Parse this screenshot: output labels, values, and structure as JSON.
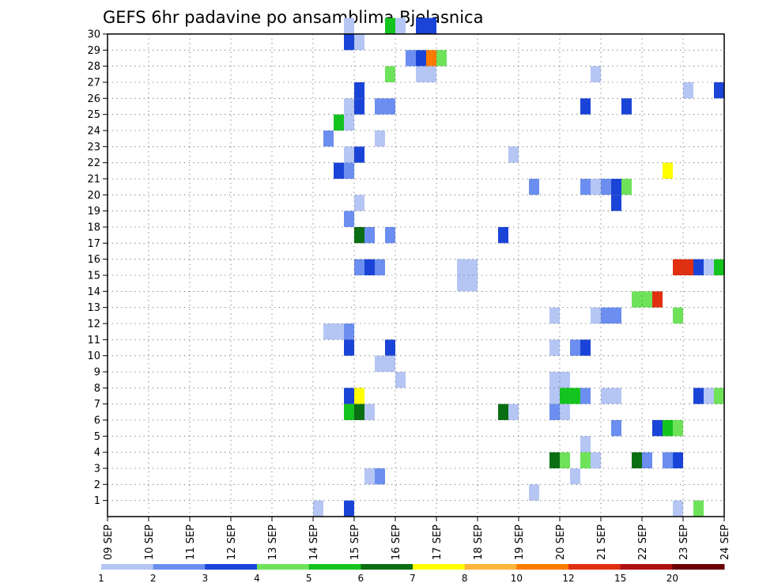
{
  "chart_data": {
    "type": "heatmap",
    "title": "GEFS 6hr padavine po ansamblima Bjelasnica",
    "xlabel": "",
    "ylabel": "",
    "x_tick_labels": [
      "09 SEP",
      "10 SEP",
      "11 SEP",
      "12 SEP",
      "13 SEP",
      "14 SEP",
      "15 SEP",
      "16 SEP",
      "17 SEP",
      "18 SEP",
      "19 SEP",
      "20 SEP",
      "21 SEP",
      "22 SEP",
      "23 SEP",
      "24 SEP"
    ],
    "y_tick_labels": [
      "1",
      "2",
      "3",
      "4",
      "5",
      "6",
      "7",
      "8",
      "9",
      "10",
      "11",
      "12",
      "13",
      "14",
      "15",
      "16",
      "17",
      "18",
      "19",
      "20",
      "21",
      "22",
      "23",
      "24",
      "25",
      "26",
      "27",
      "28",
      "29",
      "30"
    ],
    "x_range_days": [
      0,
      15
    ],
    "y_range": [
      0,
      30
    ],
    "grid": true,
    "colorbar": {
      "labels": [
        "1",
        "2",
        "3",
        "4",
        "5",
        "6",
        "7",
        "8",
        "10",
        "12",
        "15",
        "20"
      ],
      "colors": [
        "#b5c6f5",
        "#6b8ef0",
        "#1a44d8",
        "#6ee35a",
        "#14c41e",
        "#0a6e12",
        "#ffff00",
        "#ffb43c",
        "#ff7a00",
        "#e03010",
        "#b01010",
        "#6a0000"
      ]
    },
    "cell_columns_per_day": 4,
    "cells": [
      {
        "member": 30,
        "col": 23,
        "level": 1
      },
      {
        "member": 30,
        "col": 27,
        "level": 5
      },
      {
        "member": 30,
        "col": 28,
        "level": 1
      },
      {
        "member": 30,
        "col": 30,
        "level": 3
      },
      {
        "member": 30,
        "col": 31,
        "level": 3
      },
      {
        "member": 29,
        "col": 23,
        "level": 3
      },
      {
        "member": 29,
        "col": 24,
        "level": 1
      },
      {
        "member": 28,
        "col": 29,
        "level": 2
      },
      {
        "member": 28,
        "col": 30,
        "level": 3
      },
      {
        "member": 28,
        "col": 31,
        "level": 9
      },
      {
        "member": 28,
        "col": 32,
        "level": 4
      },
      {
        "member": 27,
        "col": 27,
        "level": 4
      },
      {
        "member": 27,
        "col": 30,
        "level": 1
      },
      {
        "member": 27,
        "col": 31,
        "level": 1
      },
      {
        "member": 27,
        "col": 47,
        "level": 1
      },
      {
        "member": 26,
        "col": 24,
        "level": 3
      },
      {
        "member": 26,
        "col": 56,
        "level": 1
      },
      {
        "member": 26,
        "col": 59,
        "level": 3
      },
      {
        "member": 26,
        "col": 60,
        "level": 1
      },
      {
        "member": 25,
        "col": 23,
        "level": 1
      },
      {
        "member": 25,
        "col": 24,
        "level": 3
      },
      {
        "member": 25,
        "col": 26,
        "level": 2
      },
      {
        "member": 25,
        "col": 27,
        "level": 2
      },
      {
        "member": 25,
        "col": 46,
        "level": 3
      },
      {
        "member": 25,
        "col": 50,
        "level": 3
      },
      {
        "member": 24,
        "col": 22,
        "level": 5
      },
      {
        "member": 24,
        "col": 23,
        "level": 1
      },
      {
        "member": 23,
        "col": 21,
        "level": 2
      },
      {
        "member": 23,
        "col": 26,
        "level": 1
      },
      {
        "member": 22,
        "col": 23,
        "level": 1
      },
      {
        "member": 22,
        "col": 24,
        "level": 3
      },
      {
        "member": 22,
        "col": 39,
        "level": 1
      },
      {
        "member": 21,
        "col": 22,
        "level": 3
      },
      {
        "member": 21,
        "col": 23,
        "level": 2
      },
      {
        "member": 21,
        "col": 54,
        "level": 7
      },
      {
        "member": 20,
        "col": 41,
        "level": 2
      },
      {
        "member": 20,
        "col": 46,
        "level": 2
      },
      {
        "member": 20,
        "col": 47,
        "level": 1
      },
      {
        "member": 20,
        "col": 48,
        "level": 2
      },
      {
        "member": 20,
        "col": 49,
        "level": 3
      },
      {
        "member": 20,
        "col": 50,
        "level": 4
      },
      {
        "member": 19,
        "col": 24,
        "level": 1
      },
      {
        "member": 19,
        "col": 49,
        "level": 3
      },
      {
        "member": 18,
        "col": 23,
        "level": 2
      },
      {
        "member": 17,
        "col": 24,
        "level": 6
      },
      {
        "member": 17,
        "col": 25,
        "level": 2
      },
      {
        "member": 17,
        "col": 27,
        "level": 2
      },
      {
        "member": 17,
        "col": 38,
        "level": 3
      },
      {
        "member": 15,
        "col": 24,
        "level": 2
      },
      {
        "member": 15,
        "col": 25,
        "level": 3
      },
      {
        "member": 15,
        "col": 26,
        "level": 2
      },
      {
        "member": 15,
        "col": 34,
        "level": 1
      },
      {
        "member": 15,
        "col": 35,
        "level": 1
      },
      {
        "member": 15,
        "col": 55,
        "level": 10
      },
      {
        "member": 15,
        "col": 56,
        "level": 10
      },
      {
        "member": 15,
        "col": 57,
        "level": 3
      },
      {
        "member": 15,
        "col": 58,
        "level": 1
      },
      {
        "member": 15,
        "col": 59,
        "level": 5
      },
      {
        "member": 15,
        "col": 60,
        "level": 9
      },
      {
        "member": 14,
        "col": 34,
        "level": 1
      },
      {
        "member": 14,
        "col": 35,
        "level": 1
      },
      {
        "member": 13,
        "col": 51,
        "level": 4
      },
      {
        "member": 13,
        "col": 52,
        "level": 4
      },
      {
        "member": 13,
        "col": 53,
        "level": 10
      },
      {
        "member": 12,
        "col": 43,
        "level": 1
      },
      {
        "member": 12,
        "col": 47,
        "level": 1
      },
      {
        "member": 12,
        "col": 48,
        "level": 2
      },
      {
        "member": 12,
        "col": 49,
        "level": 2
      },
      {
        "member": 12,
        "col": 55,
        "level": 4
      },
      {
        "member": 11,
        "col": 21,
        "level": 1
      },
      {
        "member": 11,
        "col": 22,
        "level": 1
      },
      {
        "member": 11,
        "col": 23,
        "level": 2
      },
      {
        "member": 10,
        "col": 23,
        "level": 3
      },
      {
        "member": 10,
        "col": 27,
        "level": 3
      },
      {
        "member": 10,
        "col": 43,
        "level": 1
      },
      {
        "member": 10,
        "col": 45,
        "level": 2
      },
      {
        "member": 10,
        "col": 46,
        "level": 3
      },
      {
        "member": 10,
        "col": 60,
        "level": 1
      },
      {
        "member": 9,
        "col": 26,
        "level": 1
      },
      {
        "member": 9,
        "col": 27,
        "level": 1
      },
      {
        "member": 8,
        "col": 28,
        "level": 1
      },
      {
        "member": 8,
        "col": 43,
        "level": 1
      },
      {
        "member": 8,
        "col": 44,
        "level": 1
      },
      {
        "member": 7,
        "col": 23,
        "level": 3
      },
      {
        "member": 7,
        "col": 24,
        "level": 7
      },
      {
        "member": 7,
        "col": 43,
        "level": 1
      },
      {
        "member": 7,
        "col": 44,
        "level": 5
      },
      {
        "member": 7,
        "col": 45,
        "level": 5
      },
      {
        "member": 7,
        "col": 46,
        "level": 2
      },
      {
        "member": 7,
        "col": 48,
        "level": 1
      },
      {
        "member": 7,
        "col": 49,
        "level": 1
      },
      {
        "member": 7,
        "col": 57,
        "level": 3
      },
      {
        "member": 7,
        "col": 58,
        "level": 1
      },
      {
        "member": 7,
        "col": 59,
        "level": 4
      },
      {
        "member": 7,
        "col": 60,
        "level": 6
      },
      {
        "member": 6,
        "col": 23,
        "level": 5
      },
      {
        "member": 6,
        "col": 24,
        "level": 6
      },
      {
        "member": 6,
        "col": 25,
        "level": 1
      },
      {
        "member": 6,
        "col": 38,
        "level": 6
      },
      {
        "member": 6,
        "col": 39,
        "level": 1
      },
      {
        "member": 6,
        "col": 43,
        "level": 2
      },
      {
        "member": 6,
        "col": 44,
        "level": 1
      },
      {
        "member": 5,
        "col": 49,
        "level": 2
      },
      {
        "member": 5,
        "col": 53,
        "level": 3
      },
      {
        "member": 5,
        "col": 54,
        "level": 5
      },
      {
        "member": 5,
        "col": 55,
        "level": 4
      },
      {
        "member": 4,
        "col": 46,
        "level": 1
      },
      {
        "member": 3,
        "col": 43,
        "level": 6
      },
      {
        "member": 3,
        "col": 44,
        "level": 4
      },
      {
        "member": 3,
        "col": 46,
        "level": 4
      },
      {
        "member": 3,
        "col": 47,
        "level": 1
      },
      {
        "member": 3,
        "col": 51,
        "level": 6
      },
      {
        "member": 3,
        "col": 52,
        "level": 2
      },
      {
        "member": 3,
        "col": 54,
        "level": 2
      },
      {
        "member": 3,
        "col": 55,
        "level": 3
      },
      {
        "member": 2,
        "col": 25,
        "level": 1
      },
      {
        "member": 2,
        "col": 26,
        "level": 2
      },
      {
        "member": 2,
        "col": 45,
        "level": 1
      },
      {
        "member": 1,
        "col": 41,
        "level": 1
      },
      {
        "member": 0,
        "col": 20,
        "level": 1
      },
      {
        "member": 0,
        "col": 23,
        "level": 3
      },
      {
        "member": 0,
        "col": 55,
        "level": 1
      },
      {
        "member": 0,
        "col": 57,
        "level": 4
      }
    ]
  }
}
